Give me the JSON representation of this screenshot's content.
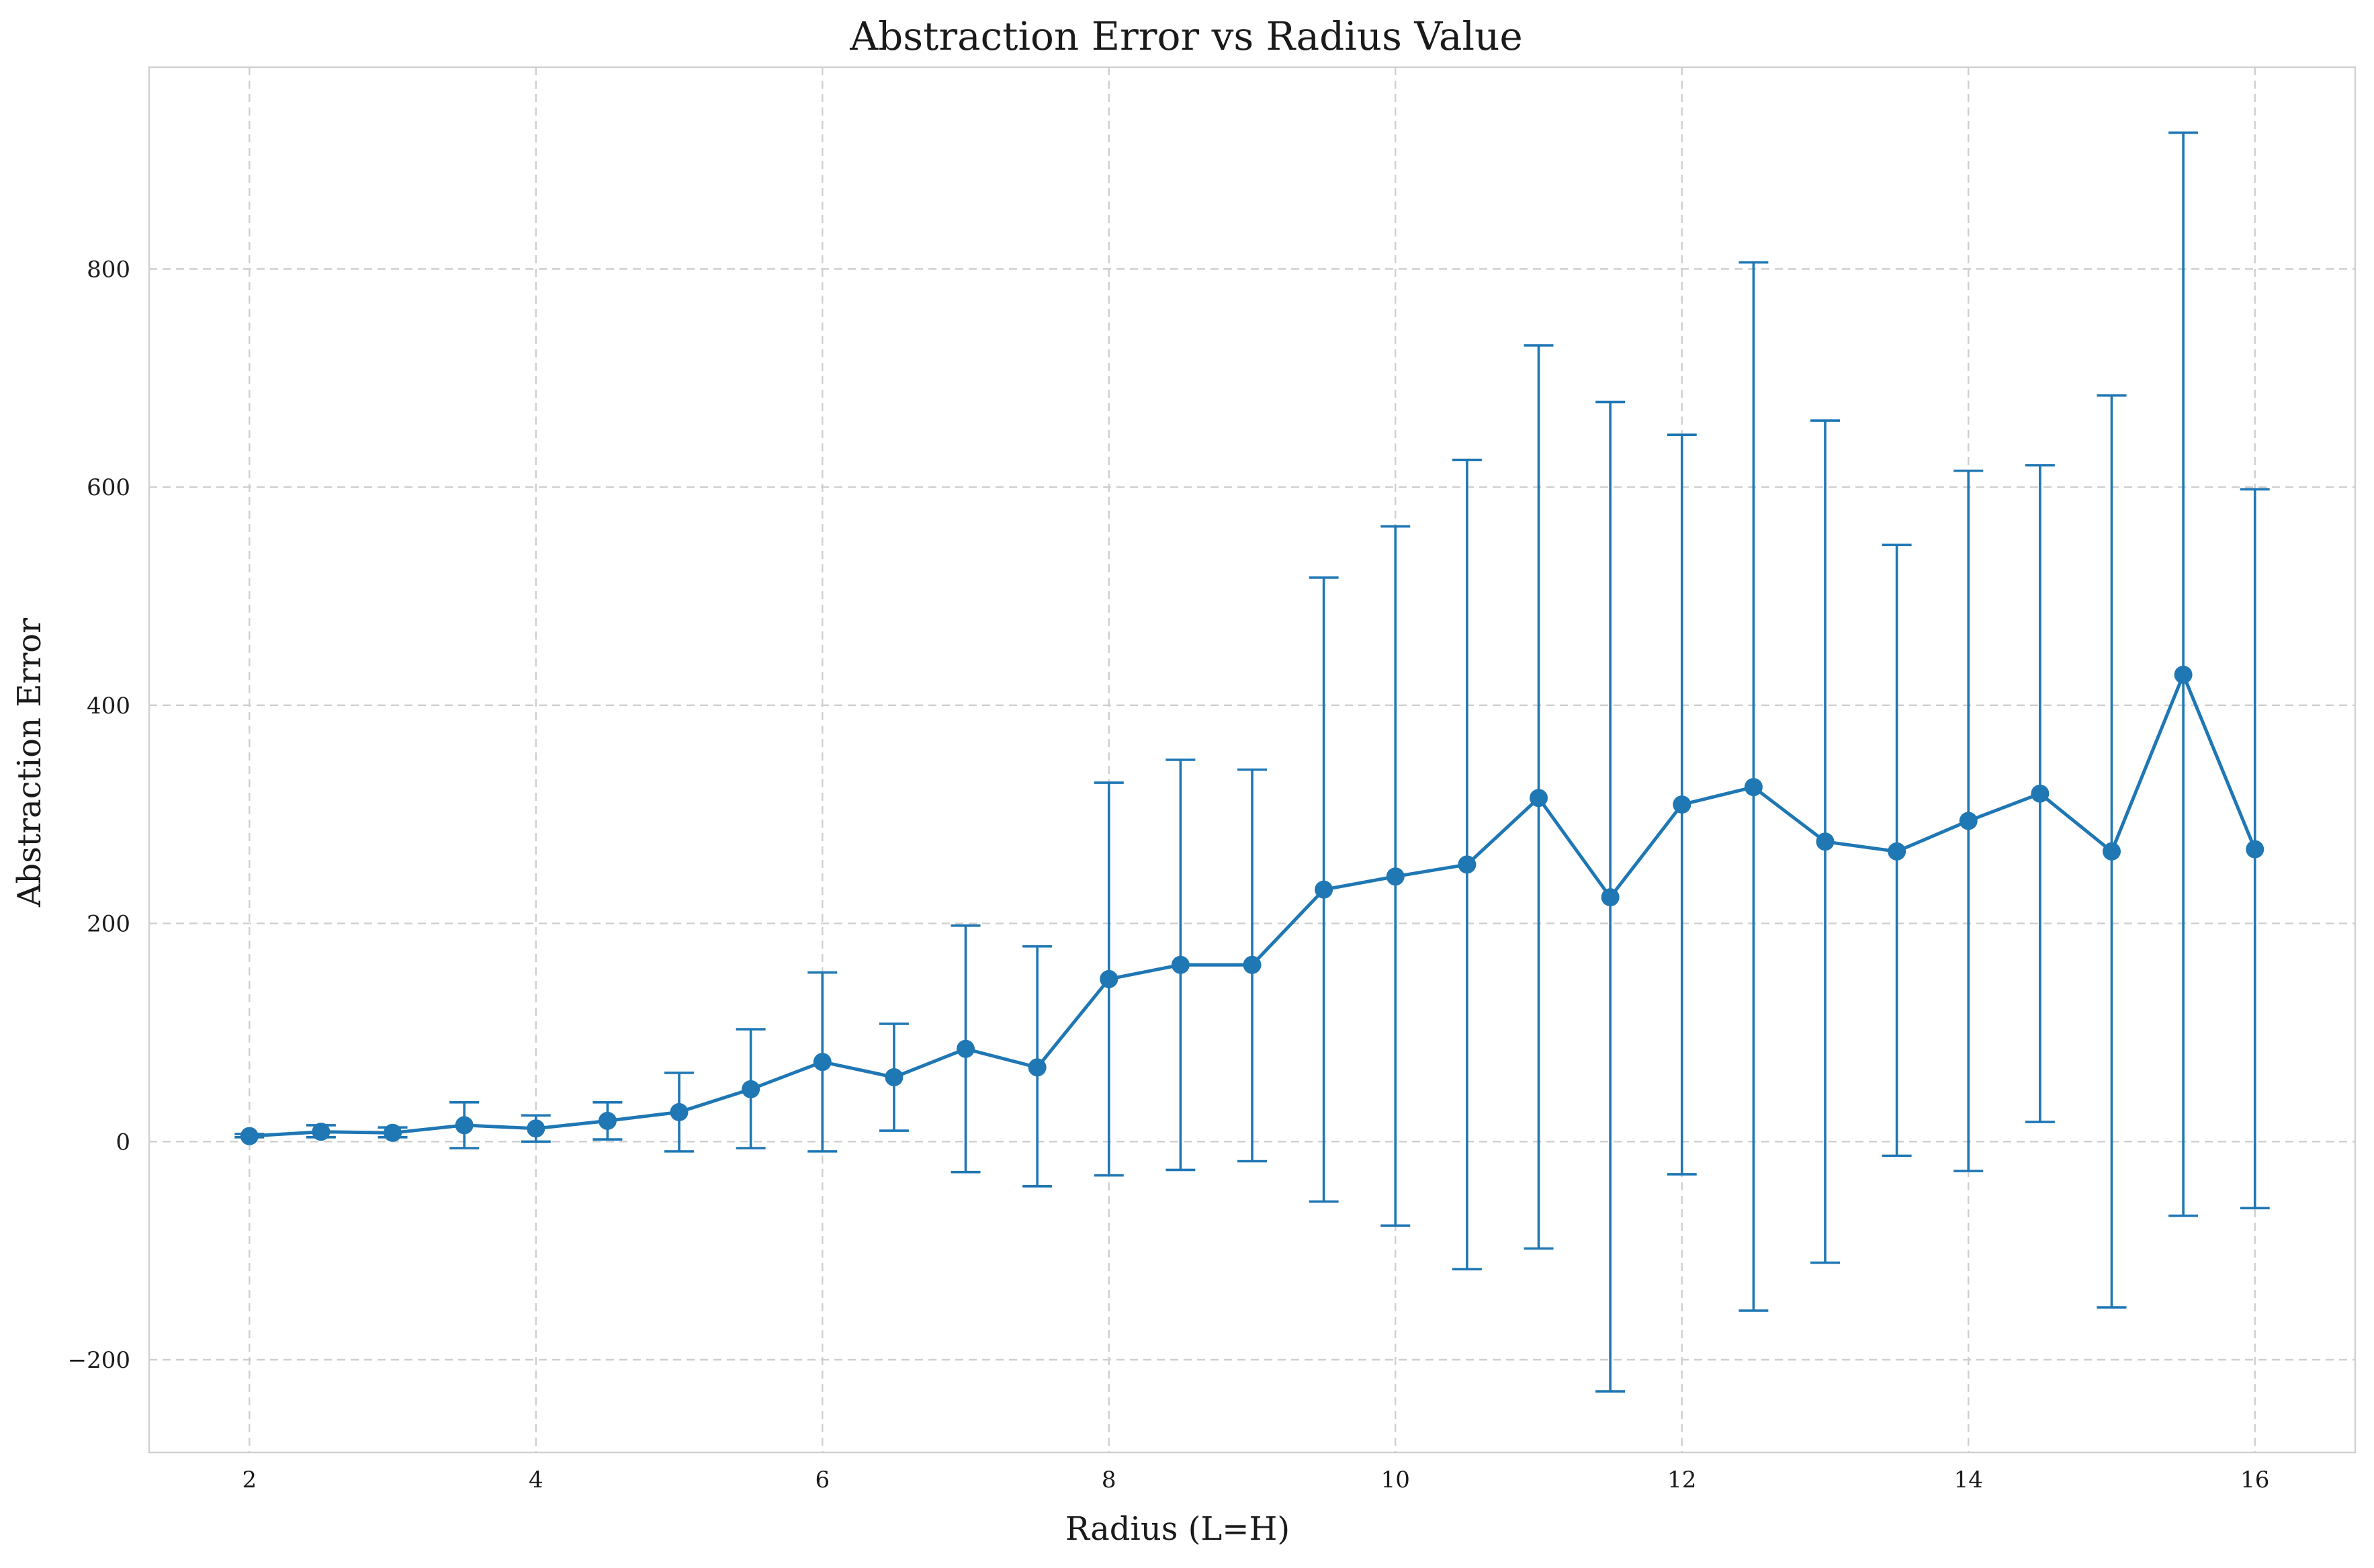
{
  "chart_data": {
    "type": "line",
    "title": "Abstraction Error vs Radius Value",
    "xlabel": "Radius (L=H)",
    "ylabel": "Abstraction Error",
    "xlim": [
      1.3,
      16.7
    ],
    "ylim": [
      -285,
      985
    ],
    "xticks": [
      2,
      4,
      6,
      8,
      10,
      12,
      14,
      16
    ],
    "yticks": [
      -200,
      0,
      200,
      400,
      600,
      800
    ],
    "ytick_labels": [
      "−200",
      "0",
      "200",
      "400",
      "600",
      "800"
    ],
    "grid": true,
    "legend": "none",
    "color": "#1f77b4",
    "series": [
      {
        "x": [
          2.0,
          2.5,
          3.0,
          3.5,
          4.0,
          4.5,
          5.0,
          5.5,
          6.0,
          6.5,
          7.0,
          7.5,
          8.0,
          8.5,
          9.0,
          9.5,
          10.0,
          10.5,
          11.0,
          11.5,
          12.0,
          12.5,
          13.0,
          13.5,
          14.0,
          14.5,
          15.0,
          15.5,
          16.0
        ],
        "y": [
          5,
          9,
          8,
          15,
          12,
          19,
          27,
          48,
          73,
          59,
          85,
          68,
          149,
          162,
          162,
          231,
          243,
          254,
          315,
          224,
          309,
          325,
          275,
          266,
          294,
          319,
          266,
          428,
          268
        ],
        "yerr_low": [
          4,
          4,
          4,
          -6,
          0,
          2,
          -9,
          -6,
          -9,
          10,
          -28,
          -41,
          -31,
          -26,
          -18,
          -55,
          -77,
          -117,
          -98,
          -229,
          -30,
          -155,
          -111,
          -13,
          -27,
          18,
          -152,
          -68,
          -61
        ],
        "yerr_high": [
          7,
          15,
          13,
          36,
          24,
          36,
          63,
          103,
          155,
          108,
          198,
          179,
          329,
          350,
          341,
          517,
          564,
          625,
          730,
          678,
          648,
          806,
          661,
          547,
          615,
          620,
          684,
          925,
          598
        ]
      }
    ]
  }
}
